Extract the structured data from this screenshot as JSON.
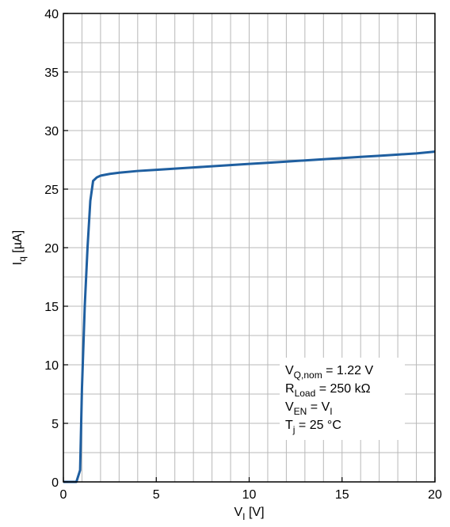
{
  "chart_data": {
    "type": "line",
    "xlabel": {
      "main": "V",
      "sub": "I",
      "unit": " [V]"
    },
    "ylabel": {
      "main": "I",
      "sub": "q",
      "unit": " [µA]"
    },
    "xlim": [
      0,
      20
    ],
    "ylim": [
      0,
      40
    ],
    "x_ticks": [
      "0",
      "5",
      "10",
      "15",
      "20"
    ],
    "y_ticks": [
      "0",
      "5",
      "10",
      "15",
      "20",
      "25",
      "30",
      "35",
      "40"
    ],
    "x_tick_values": [
      0,
      5,
      10,
      15,
      20
    ],
    "y_tick_values": [
      0,
      5,
      10,
      15,
      20,
      25,
      30,
      35,
      40
    ],
    "grid": true,
    "grid_minor_x": 1,
    "grid_minor_y": 2.5,
    "series": [
      {
        "color": "#1f5fa0",
        "x": [
          0,
          0.7,
          0.9,
          1.0,
          1.15,
          1.3,
          1.45,
          1.6,
          1.8,
          2.0,
          2.5,
          3,
          4,
          5,
          6,
          7,
          8,
          9,
          10,
          11,
          12,
          13,
          14,
          15,
          16,
          17,
          18,
          19,
          20
        ],
        "y": [
          0,
          0,
          1.0,
          8.0,
          15.0,
          20.0,
          24.0,
          25.7,
          26.0,
          26.15,
          26.3,
          26.4,
          26.55,
          26.65,
          26.75,
          26.85,
          26.95,
          27.05,
          27.15,
          27.25,
          27.35,
          27.45,
          27.55,
          27.65,
          27.75,
          27.85,
          27.95,
          28.05,
          28.2
        ]
      }
    ],
    "annotation": {
      "lines": [
        {
          "main": "V",
          "sub": "Q,nom",
          "rest": " = 1.22 V"
        },
        {
          "main": "R",
          "sub": "Load",
          "rest": " = 250 kΩ"
        },
        {
          "main": "V",
          "sub": "EN",
          "rest": " = V",
          "sub2": "I"
        },
        {
          "main": "T",
          "sub": "j",
          "rest": " = 25 °C"
        }
      ]
    }
  }
}
